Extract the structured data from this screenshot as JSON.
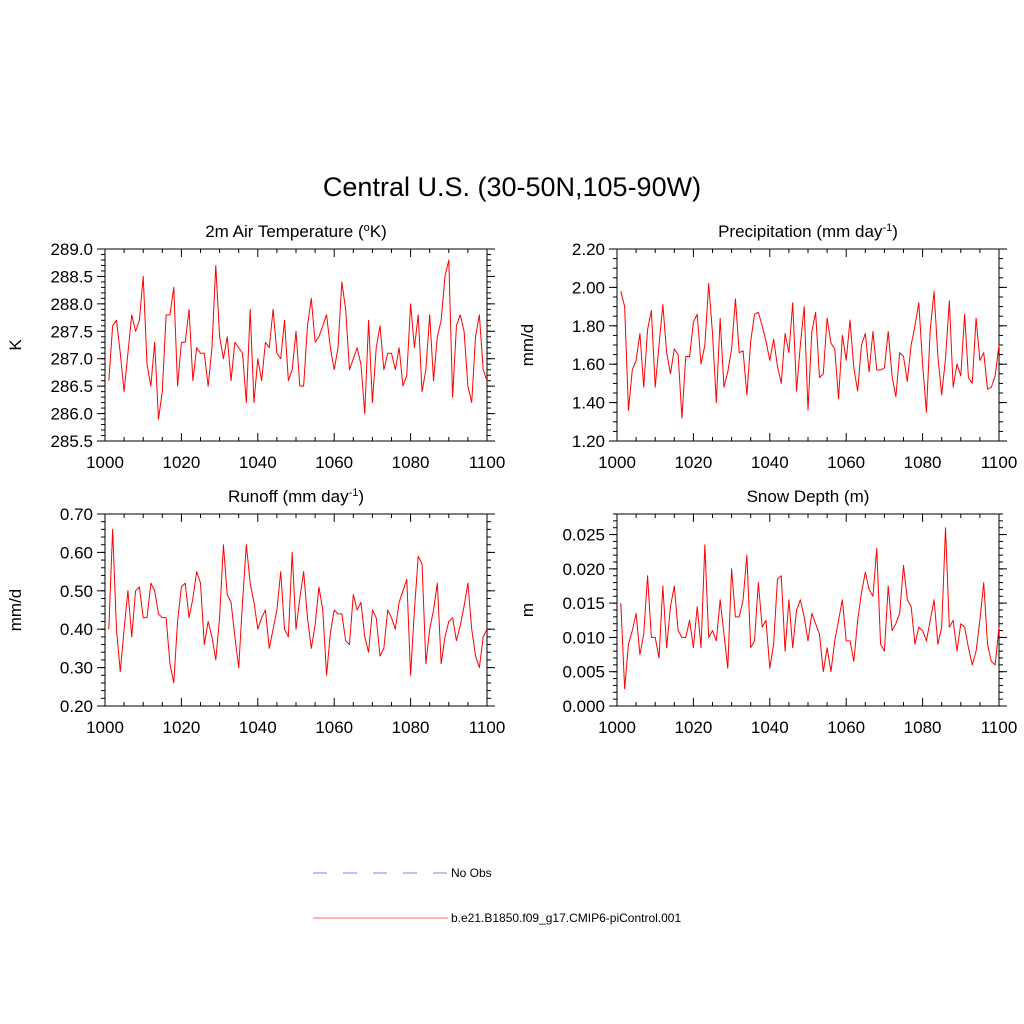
{
  "figure": {
    "title": "Central U.S. (30-50N,105-90W)"
  },
  "legend": {
    "obs_label": "No Obs",
    "obs_color": "#9999ee",
    "model_label": "b.e21.B1850.f09_g17.CMIP6-piControl.001",
    "model_color": "#ff8888"
  },
  "chart_data": [
    {
      "id": "temperature",
      "type": "line",
      "title_main": "2m Air Temperature (",
      "title_sup": "o",
      "title_tail": "K)",
      "ylabel": "K",
      "xlim": [
        1000,
        1100
      ],
      "ylim": [
        285.5,
        289.0
      ],
      "xticks": [
        1000,
        1020,
        1040,
        1060,
        1080,
        1100
      ],
      "yticks": [
        285.5,
        286.0,
        286.5,
        287.0,
        287.5,
        288.0,
        288.5,
        289.0
      ],
      "ydecimals": 1,
      "yminor": 0.1,
      "series": [
        {
          "name": "b.e21.B1850.f09_g17.CMIP6-piControl.001",
          "color": "#ff0000",
          "x_start": 1001,
          "values": [
            286.6,
            287.6,
            287.7,
            287.1,
            286.4,
            287.1,
            287.8,
            287.5,
            287.7,
            288.5,
            286.9,
            286.5,
            287.3,
            285.9,
            286.4,
            287.8,
            287.8,
            288.3,
            286.5,
            287.3,
            287.3,
            287.9,
            286.6,
            287.2,
            287.1,
            287.1,
            286.5,
            287.2,
            288.7,
            287.4,
            287.0,
            287.4,
            286.6,
            287.3,
            287.2,
            287.1,
            286.2,
            287.9,
            286.2,
            287.0,
            286.6,
            287.3,
            287.2,
            287.9,
            287.1,
            287.0,
            287.7,
            286.6,
            286.8,
            287.5,
            286.5,
            286.5,
            287.6,
            288.1,
            287.3,
            287.4,
            287.6,
            287.8,
            287.2,
            286.8,
            287.2,
            288.4,
            287.9,
            286.8,
            287.0,
            287.2,
            286.9,
            286.0,
            287.7,
            286.2,
            287.2,
            287.6,
            286.8,
            287.1,
            287.1,
            286.8,
            287.2,
            286.5,
            286.7,
            288.0,
            287.2,
            287.8,
            286.4,
            286.8,
            287.8,
            286.6,
            287.4,
            287.7,
            288.5,
            288.8,
            286.3,
            287.6,
            287.8,
            287.5,
            286.5,
            286.2,
            287.4,
            287.8,
            286.8,
            286.6
          ]
        }
      ]
    },
    {
      "id": "precipitation",
      "type": "line",
      "title_main": "Precipitation (mm day",
      "title_sup": "-1",
      "title_tail": ")",
      "ylabel": "mm/d",
      "xlim": [
        1000,
        1100
      ],
      "ylim": [
        1.2,
        2.2
      ],
      "xticks": [
        1000,
        1020,
        1040,
        1060,
        1080,
        1100
      ],
      "yticks": [
        1.2,
        1.4,
        1.6,
        1.8,
        2.0,
        2.2
      ],
      "ydecimals": 2,
      "yminor": 0.05,
      "series": [
        {
          "name": "b.e21.B1850.f09_g17.CMIP6-piControl.001",
          "color": "#ff0000",
          "x_start": 1001,
          "values": [
            1.98,
            1.9,
            1.36,
            1.57,
            1.62,
            1.76,
            1.48,
            1.78,
            1.88,
            1.48,
            1.7,
            1.91,
            1.66,
            1.55,
            1.68,
            1.65,
            1.32,
            1.64,
            1.64,
            1.82,
            1.86,
            1.6,
            1.7,
            2.02,
            1.76,
            1.4,
            1.84,
            1.48,
            1.56,
            1.68,
            1.94,
            1.66,
            1.67,
            1.44,
            1.72,
            1.86,
            1.87,
            1.8,
            1.72,
            1.62,
            1.73,
            1.59,
            1.5,
            1.76,
            1.66,
            1.92,
            1.46,
            1.7,
            1.9,
            1.36,
            1.77,
            1.87,
            1.53,
            1.55,
            1.84,
            1.71,
            1.68,
            1.42,
            1.75,
            1.62,
            1.83,
            1.58,
            1.46,
            1.7,
            1.76,
            1.56,
            1.77,
            1.57,
            1.57,
            1.58,
            1.77,
            1.54,
            1.43,
            1.66,
            1.64,
            1.51,
            1.7,
            1.8,
            1.92,
            1.6,
            1.35,
            1.78,
            1.98,
            1.64,
            1.44,
            1.63,
            1.93,
            1.48,
            1.6,
            1.54,
            1.86,
            1.53,
            1.5,
            1.84,
            1.62,
            1.66,
            1.47,
            1.48,
            1.54,
            1.7
          ]
        }
      ]
    },
    {
      "id": "runoff",
      "type": "line",
      "title_main": "Runoff (mm day",
      "title_sup": "-1",
      "title_tail": ")",
      "ylabel": "mm/d",
      "xlim": [
        1000,
        1100
      ],
      "ylim": [
        0.2,
        0.7
      ],
      "xticks": [
        1000,
        1020,
        1040,
        1060,
        1080,
        1100
      ],
      "yticks": [
        0.2,
        0.3,
        0.4,
        0.5,
        0.6,
        0.7
      ],
      "ydecimals": 2,
      "yminor": 0.02,
      "series": [
        {
          "name": "b.e21.B1850.f09_g17.CMIP6-piControl.001",
          "color": "#ff0000",
          "x_start": 1001,
          "values": [
            0.4,
            0.66,
            0.4,
            0.29,
            0.4,
            0.5,
            0.38,
            0.5,
            0.51,
            0.43,
            0.43,
            0.52,
            0.5,
            0.44,
            0.43,
            0.43,
            0.31,
            0.26,
            0.42,
            0.51,
            0.52,
            0.43,
            0.48,
            0.55,
            0.52,
            0.36,
            0.42,
            0.38,
            0.32,
            0.43,
            0.62,
            0.49,
            0.47,
            0.38,
            0.3,
            0.47,
            0.62,
            0.52,
            0.47,
            0.4,
            0.43,
            0.45,
            0.35,
            0.4,
            0.45,
            0.55,
            0.4,
            0.38,
            0.6,
            0.4,
            0.48,
            0.55,
            0.43,
            0.35,
            0.41,
            0.51,
            0.45,
            0.28,
            0.39,
            0.45,
            0.44,
            0.44,
            0.37,
            0.36,
            0.49,
            0.45,
            0.47,
            0.38,
            0.34,
            0.45,
            0.43,
            0.33,
            0.35,
            0.45,
            0.43,
            0.4,
            0.47,
            0.5,
            0.53,
            0.28,
            0.45,
            0.59,
            0.57,
            0.31,
            0.4,
            0.45,
            0.52,
            0.31,
            0.38,
            0.42,
            0.43,
            0.37,
            0.41,
            0.46,
            0.52,
            0.4,
            0.33,
            0.3,
            0.38,
            0.4
          ]
        }
      ]
    },
    {
      "id": "snow_depth",
      "type": "line",
      "title_main": "Snow Depth (m)",
      "title_sup": "",
      "title_tail": "",
      "ylabel": "m",
      "xlim": [
        1000,
        1100
      ],
      "ylim": [
        0.0,
        0.028
      ],
      "xticks": [
        1000,
        1020,
        1040,
        1060,
        1080,
        1100
      ],
      "yticks": [
        0.0,
        0.005,
        0.01,
        0.015,
        0.02,
        0.025
      ],
      "ydecimals": 3,
      "yminor": 0.001,
      "series": [
        {
          "name": "b.e21.B1850.f09_g17.CMIP6-piControl.001",
          "color": "#ff0000",
          "x_start": 1001,
          "values": [
            0.015,
            0.0025,
            0.009,
            0.011,
            0.0135,
            0.0075,
            0.0105,
            0.019,
            0.01,
            0.01,
            0.007,
            0.0175,
            0.0085,
            0.0145,
            0.0175,
            0.011,
            0.01,
            0.01,
            0.0125,
            0.0085,
            0.0145,
            0.0085,
            0.0235,
            0.01,
            0.011,
            0.0095,
            0.0155,
            0.0105,
            0.0055,
            0.02,
            0.013,
            0.013,
            0.0155,
            0.022,
            0.0085,
            0.0095,
            0.018,
            0.0115,
            0.0125,
            0.0055,
            0.009,
            0.0185,
            0.019,
            0.008,
            0.0155,
            0.0085,
            0.014,
            0.0155,
            0.013,
            0.0095,
            0.0135,
            0.012,
            0.0105,
            0.005,
            0.0085,
            0.005,
            0.0095,
            0.0125,
            0.0155,
            0.0095,
            0.0095,
            0.0065,
            0.0125,
            0.0165,
            0.0195,
            0.017,
            0.016,
            0.023,
            0.009,
            0.008,
            0.0175,
            0.011,
            0.012,
            0.0135,
            0.0205,
            0.0155,
            0.0145,
            0.009,
            0.0115,
            0.011,
            0.0095,
            0.0125,
            0.0155,
            0.009,
            0.0115,
            0.026,
            0.0115,
            0.0125,
            0.008,
            0.012,
            0.0115,
            0.0085,
            0.006,
            0.008,
            0.0125,
            0.018,
            0.009,
            0.0065,
            0.006,
            0.0115
          ]
        }
      ]
    }
  ]
}
